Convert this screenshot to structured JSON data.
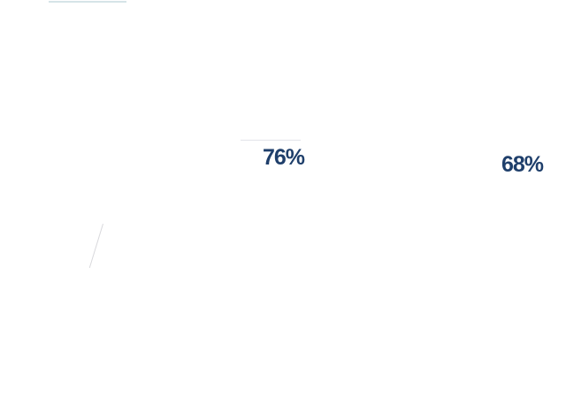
{
  "stats": [
    {
      "value": "76%"
    },
    {
      "value": "68%"
    }
  ],
  "colors": {
    "stat_text": "#1f3f6b",
    "faint_top": "#d6e4e8",
    "faint_mid": "#e2e4ea",
    "faint_slash": "#d8d8dc",
    "background": "#ffffff"
  }
}
